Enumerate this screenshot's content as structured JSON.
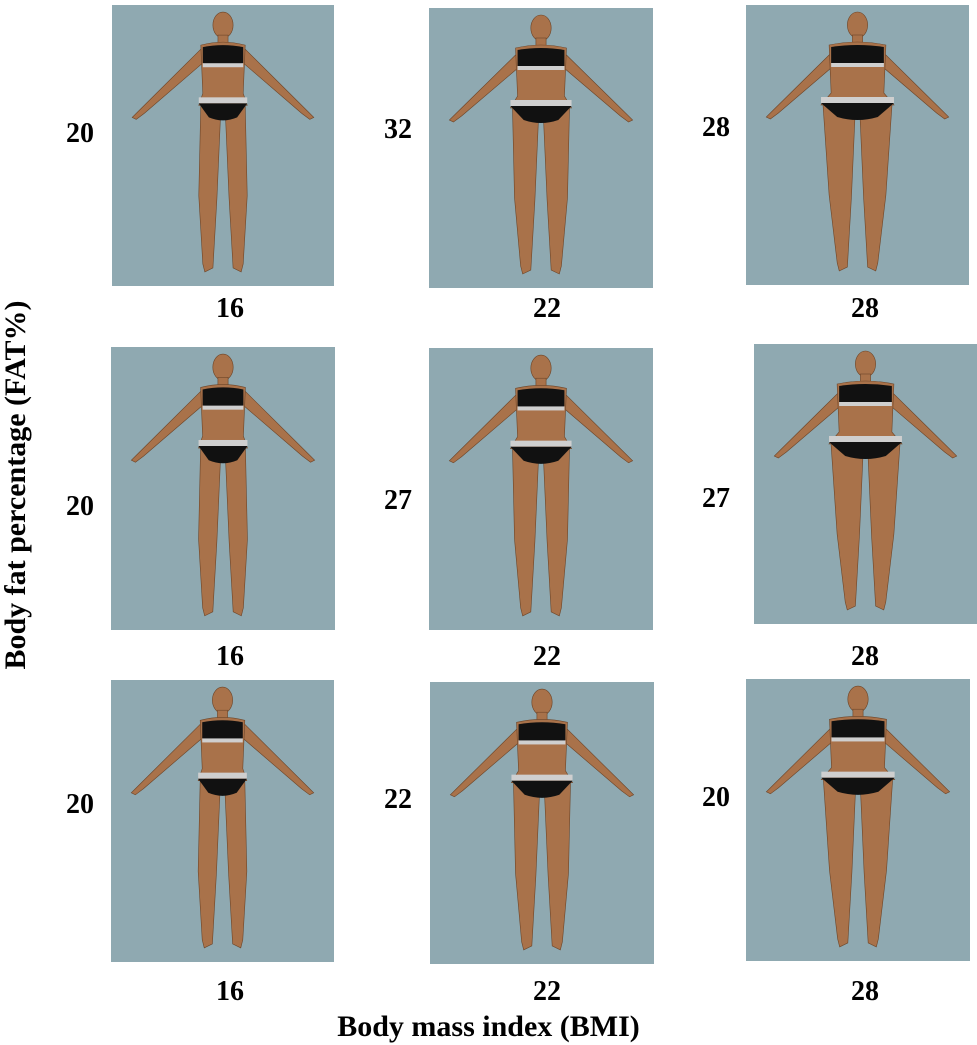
{
  "axis": {
    "x_label": "Body mass index (BMI)",
    "y_label": "Body fat percentage (FAT%)"
  },
  "colors": {
    "panel_background": "#8fa9b1",
    "skin": "#a9724a",
    "garment": "#111111",
    "band": "#cfcfcf"
  },
  "figure": {
    "rows": [
      {
        "cells": [
          {
            "fat": "20",
            "bmi": "16"
          },
          {
            "fat": "32",
            "bmi": "22"
          },
          {
            "fat": "28",
            "bmi": "28"
          }
        ]
      },
      {
        "cells": [
          {
            "fat": "20",
            "bmi": "16"
          },
          {
            "fat": "27",
            "bmi": "22"
          },
          {
            "fat": "27",
            "bmi": "28"
          }
        ]
      },
      {
        "cells": [
          {
            "fat": "20",
            "bmi": "16"
          },
          {
            "fat": "22",
            "bmi": "22"
          },
          {
            "fat": "20",
            "bmi": "28"
          }
        ]
      }
    ]
  }
}
